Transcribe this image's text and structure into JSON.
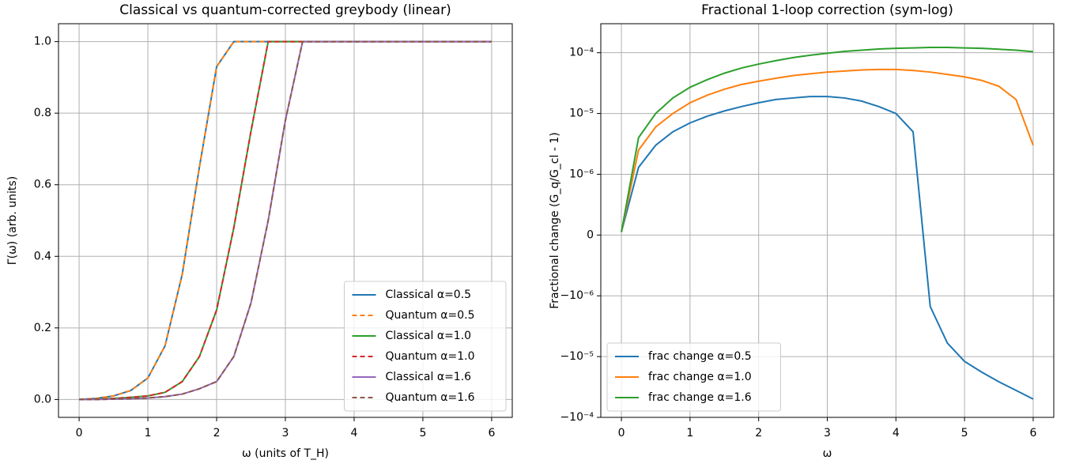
{
  "chart_data": [
    {
      "type": "line",
      "title": "Classical vs quantum-corrected greybody (linear)",
      "xlabel": "ω (units of T_H)",
      "ylabel": "Γ(ω) (arb. units)",
      "x": [
        0,
        0.25,
        0.5,
        0.75,
        1,
        1.25,
        1.5,
        1.75,
        2,
        2.25,
        2.5,
        2.75,
        3,
        3.25,
        3.5,
        3.75,
        4,
        4.25,
        4.5,
        4.75,
        5,
        5.25,
        5.5,
        5.75,
        6
      ],
      "xlim": [
        -0.3,
        6.3
      ],
      "xticks": [
        0,
        1,
        2,
        3,
        4,
        5,
        6
      ],
      "ylim": [
        -0.05,
        1.05
      ],
      "yticks": [
        {
          "value": 0,
          "label": "0.0"
        },
        0.2,
        0.4,
        0.6,
        0.8,
        {
          "value": 1,
          "label": "1.0"
        }
      ],
      "grid": true,
      "legend": "lower right",
      "series": [
        {
          "name": "Classical α=0.5",
          "color": "#1f77b4",
          "values": [
            0,
            0.003,
            0.01,
            0.025,
            0.06,
            0.15,
            0.35,
            0.65,
            0.93,
            1,
            1,
            1,
            1,
            1,
            1,
            1,
            1,
            1,
            1,
            1,
            1,
            1,
            1,
            1,
            1
          ]
        },
        {
          "name": "Quantum α=0.5",
          "color": "#ff7f0e",
          "dashed": true,
          "values": [
            0,
            0.003,
            0.01,
            0.025,
            0.06,
            0.15,
            0.35,
            0.65,
            0.93,
            1,
            1,
            1,
            1,
            1,
            1,
            1,
            1,
            1,
            1,
            1,
            1,
            1,
            1,
            1,
            1
          ]
        },
        {
          "name": "Classical α=1.0",
          "color": "#2ca02c",
          "values": [
            0,
            0.001,
            0.003,
            0.006,
            0.01,
            0.02,
            0.05,
            0.12,
            0.25,
            0.48,
            0.75,
            1,
            1,
            1,
            1,
            1,
            1,
            1,
            1,
            1,
            1,
            1,
            1,
            1,
            1
          ]
        },
        {
          "name": "Quantum α=1.0",
          "color": "#d62728",
          "dashed": true,
          "values": [
            0,
            0.001,
            0.003,
            0.006,
            0.01,
            0.02,
            0.05,
            0.12,
            0.25,
            0.48,
            0.75,
            1,
            1,
            1,
            1,
            1,
            1,
            1,
            1,
            1,
            1,
            1,
            1,
            1,
            1
          ]
        },
        {
          "name": "Classical α=1.6",
          "color": "#9467bd",
          "values": [
            0,
            0,
            0.001,
            0.002,
            0.004,
            0.008,
            0.015,
            0.03,
            0.05,
            0.12,
            0.27,
            0.5,
            0.78,
            1,
            1,
            1,
            1,
            1,
            1,
            1,
            1,
            1,
            1,
            1,
            1
          ]
        },
        {
          "name": "Quantum α=1.6",
          "color": "#8c564b",
          "dashed": true,
          "values": [
            0,
            0,
            0.001,
            0.002,
            0.004,
            0.008,
            0.015,
            0.03,
            0.05,
            0.12,
            0.27,
            0.5,
            0.78,
            1,
            1,
            1,
            1,
            1,
            1,
            1,
            1,
            1,
            1,
            1,
            1
          ]
        }
      ]
    },
    {
      "type": "line",
      "title": "Fractional 1-loop correction (sym-log)",
      "xlabel": "ω",
      "ylabel": "Fractional change (G_q/G_cl - 1)",
      "x": [
        0,
        0.25,
        0.5,
        0.75,
        1,
        1.25,
        1.5,
        1.75,
        2,
        2.25,
        2.5,
        2.75,
        3,
        3.25,
        3.5,
        3.75,
        4,
        4.25,
        4.5,
        4.75,
        5,
        5.25,
        5.5,
        5.75,
        6
      ],
      "xlim": [
        -0.3,
        6.3
      ],
      "xticks": [
        0,
        1,
        2,
        3,
        4,
        5,
        6
      ],
      "yscale": "symlog",
      "linthresh": 1e-06,
      "ylim": [
        -0.0001,
        0.0003
      ],
      "yticks": [
        {
          "value": -0.0001,
          "label": "−10⁻⁴"
        },
        {
          "value": -1e-05,
          "label": "−10⁻⁵"
        },
        {
          "value": -1e-06,
          "label": "−10⁻⁶"
        },
        0,
        {
          "value": 1e-06,
          "label": "10⁻⁶"
        },
        {
          "value": 1e-05,
          "label": "10⁻⁵"
        },
        {
          "value": 0.0001,
          "label": "10⁻⁴"
        }
      ],
      "grid": true,
      "legend": "lower left",
      "series": [
        {
          "name": "frac change α=0.5",
          "color": "#1f77b4",
          "values": [
            5e-08,
            1.3e-06,
            3e-06,
            5e-06,
            7e-06,
            9e-06,
            1.1e-05,
            1.3e-05,
            1.5e-05,
            1.7e-05,
            1.8e-05,
            1.9e-05,
            1.9e-05,
            1.8e-05,
            1.6e-05,
            1.3e-05,
            1e-05,
            5e-06,
            -1.5e-06,
            -6e-06,
            -1.2e-05,
            -1.8e-05,
            -2.6e-05,
            -3.6e-05,
            -5e-05
          ]
        },
        {
          "name": "frac change α=1.0",
          "color": "#ff7f0e",
          "values": [
            5e-08,
            2.5e-06,
            6e-06,
            1e-05,
            1.5e-05,
            2e-05,
            2.5e-05,
            3e-05,
            3.4e-05,
            3.8e-05,
            4.2e-05,
            4.5e-05,
            4.8e-05,
            5e-05,
            5.2e-05,
            5.3e-05,
            5.3e-05,
            5.1e-05,
            4.8e-05,
            4.4e-05,
            4e-05,
            3.5e-05,
            2.8e-05,
            1.7e-05,
            3e-06
          ]
        },
        {
          "name": "frac change α=1.6",
          "color": "#2ca02c",
          "values": [
            5e-08,
            4e-06,
            1e-05,
            1.8e-05,
            2.7e-05,
            3.6e-05,
            4.6e-05,
            5.6e-05,
            6.5e-05,
            7.4e-05,
            8.3e-05,
            9.1e-05,
            9.8e-05,
            0.000105,
            0.00011,
            0.000115,
            0.000118,
            0.00012,
            0.000122,
            0.000122,
            0.00012,
            0.000118,
            0.000114,
            0.00011,
            0.000104
          ]
        }
      ]
    }
  ]
}
